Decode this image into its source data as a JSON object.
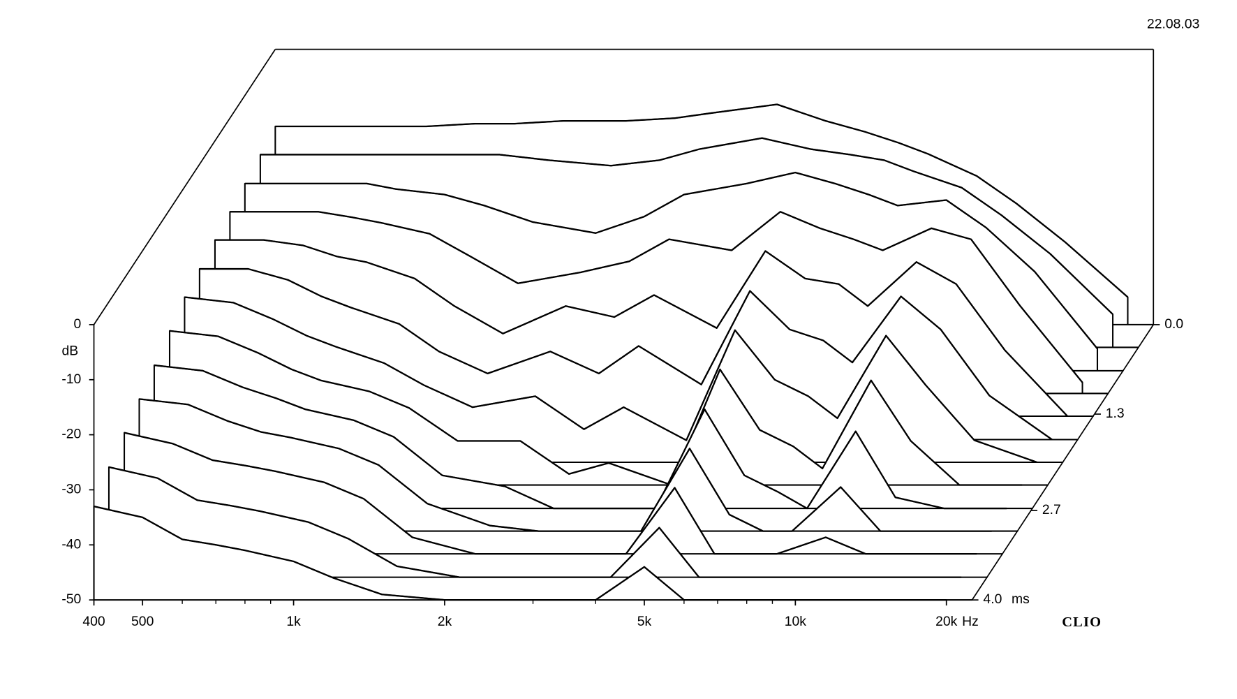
{
  "date": "22.08.03",
  "brand": "CLIO",
  "chart_data": {
    "type": "waterfall",
    "xlabel": "Hz",
    "ylabel": "dB",
    "zlabel": "ms",
    "log_x": true,
    "xlim": [
      400,
      22500
    ],
    "xticks": [
      400,
      500,
      {
        "value": 1000,
        "label": "1k"
      },
      {
        "value": 2000,
        "label": "2k"
      },
      {
        "value": 5000,
        "label": "5k"
      },
      {
        "value": 10000,
        "label": "10k"
      },
      {
        "value": 20000,
        "label": "20k"
      }
    ],
    "xminorticks": [
      600,
      700,
      800,
      900,
      3000,
      4000,
      6000,
      7000,
      8000,
      9000
    ],
    "ylim": [
      -50,
      0
    ],
    "yticks": [
      0,
      -10,
      -20,
      -30,
      -40,
      -50
    ],
    "zlim": [
      0,
      4
    ],
    "zticks": [
      {
        "value": 0,
        "label": "0.0"
      },
      1.3,
      2.7,
      {
        "value": 4,
        "label": "4.0"
      }
    ],
    "color": "#000000",
    "x": [
      400,
      500,
      600,
      700,
      800,
      1000,
      1200,
      1500,
      2000,
      2500,
      3000,
      4000,
      5000,
      6000,
      7000,
      8000,
      10000,
      12000,
      15000,
      20000
    ],
    "slices": [
      {
        "time": 0,
        "values": [
          -14,
          -14,
          -14,
          -14,
          -14,
          -13.5,
          -13.5,
          -13,
          -13,
          -12.5,
          -11.5,
          -10,
          -13,
          -15,
          -17,
          -19,
          -23,
          -28,
          -35,
          -45
        ]
      },
      {
        "time": 0.33,
        "values": [
          -15,
          -15,
          -15,
          -15,
          -15,
          -15,
          -15,
          -16,
          -17,
          -16,
          -14,
          -12,
          -14,
          -15,
          -16,
          -18,
          -21,
          -26,
          -33,
          -44
        ]
      },
      {
        "time": 0.67,
        "values": [
          -16,
          -16,
          -16,
          -16,
          -17,
          -18,
          -20,
          -23,
          -25,
          -22,
          -18,
          -16,
          -14,
          -16,
          -18,
          -20,
          -19,
          -24,
          -32,
          -46
        ]
      },
      {
        "time": 1.0,
        "values": [
          -17,
          -17,
          -17,
          -18,
          -19,
          -21,
          -25,
          -30,
          -28,
          -26,
          -22,
          -24,
          -17,
          -20,
          -22,
          -24,
          -20,
          -22,
          -34,
          -48
        ]
      },
      {
        "time": 1.33,
        "values": [
          -18,
          -18,
          -19,
          -21,
          -22,
          -25,
          -30,
          -35,
          -30,
          -32,
          -28,
          -34,
          -20,
          -25,
          -26,
          -30,
          -22,
          -26,
          -38,
          -50
        ]
      },
      {
        "time": 1.67,
        "values": [
          -19,
          -19,
          -21,
          -24,
          -26,
          -29,
          -34,
          -38,
          -34,
          -38,
          -33,
          -40,
          -23,
          -30,
          -32,
          -36,
          -24,
          -30,
          -42,
          -50
        ]
      },
      {
        "time": 2.0,
        "values": [
          -20,
          -21,
          -24,
          -27,
          -29,
          -32,
          -36,
          -40,
          -38,
          -44,
          -40,
          -46,
          -26,
          -35,
          -38,
          -42,
          -27,
          -36,
          -46,
          -50
        ]
      },
      {
        "time": 2.33,
        "values": [
          -22,
          -23,
          -26,
          -29,
          -31,
          -33,
          -36,
          -42,
          -42,
          -48,
          -46,
          -50,
          -29,
          -40,
          -43,
          -47,
          -31,
          -42,
          -50,
          -50
        ]
      },
      {
        "time": 2.67,
        "values": [
          -24,
          -25,
          -28,
          -30,
          -32,
          -34,
          -37,
          -44,
          -46,
          -50,
          -50,
          -50,
          -32,
          -44,
          -47,
          -50,
          -36,
          -48,
          -50,
          -50
        ]
      },
      {
        "time": 3.0,
        "values": [
          -26,
          -27,
          -30,
          -32,
          -33,
          -35,
          -38,
          -45,
          -49,
          -50,
          -50,
          -50,
          -35,
          -47,
          -50,
          -50,
          -42,
          -50,
          -50,
          -50
        ]
      },
      {
        "time": 3.33,
        "values": [
          -28,
          -30,
          -33,
          -34,
          -35,
          -37,
          -40,
          -47,
          -50,
          -50,
          -50,
          -50,
          -38,
          -50,
          -50,
          -50,
          -47,
          -50,
          -50,
          -50
        ]
      },
      {
        "time": 3.67,
        "values": [
          -30,
          -32,
          -36,
          -37,
          -38,
          -40,
          -43,
          -48,
          -50,
          -50,
          -50,
          -50,
          -41,
          -50,
          -50,
          -50,
          -50,
          -50,
          -50,
          -50
        ]
      },
      {
        "time": 4.0,
        "values": [
          -33,
          -35,
          -39,
          -40,
          -41,
          -43,
          -46,
          -49,
          -50,
          -50,
          -50,
          -50,
          -44,
          -50,
          -50,
          -50,
          -50,
          -50,
          -50,
          -50
        ]
      }
    ]
  }
}
